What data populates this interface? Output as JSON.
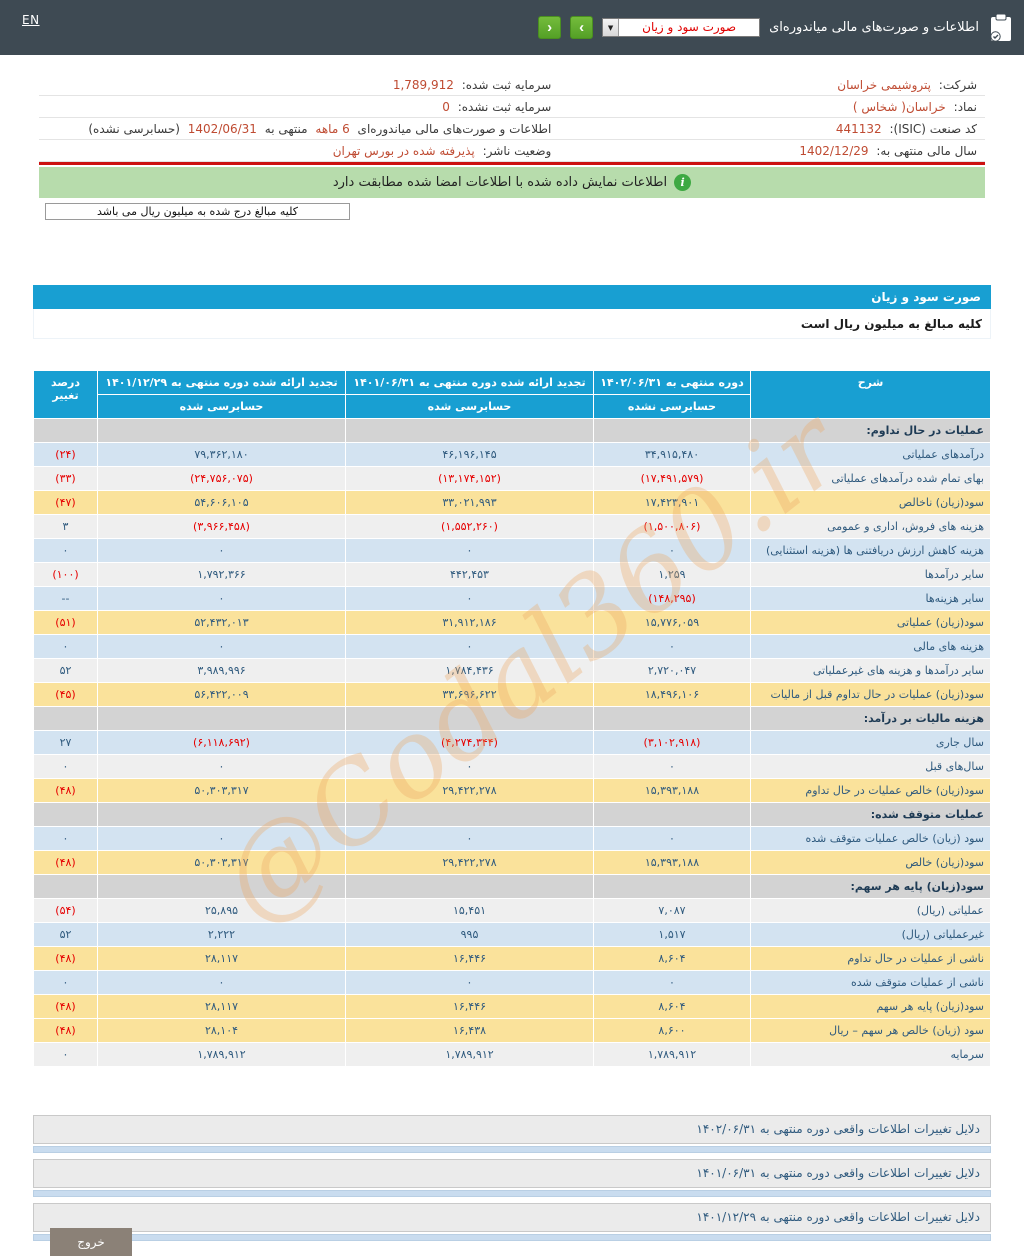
{
  "topbar": {
    "lang_toggle": "EN",
    "title": "اطلاعات و صورت‌های مالی میاندوره‌ای",
    "report_select_value": "صورت سود و زیان",
    "select_arrow_glyph": "▼",
    "next_glyph": "›",
    "prev_glyph": "‹"
  },
  "company": {
    "right_rows": [
      {
        "label": "شرکت:",
        "value": "پتروشیمی خراسان"
      },
      {
        "label": "نماد:",
        "value": "خراسان( شخاس )"
      },
      {
        "label": "کد صنعت (ISIC):",
        "value": "441132"
      },
      {
        "label": "سال مالی منتهی به:",
        "value": "1402/12/29"
      }
    ],
    "left_rows": [
      {
        "label": "سرمایه ثبت شده:",
        "value": "1,789,912"
      },
      {
        "label": "سرمایه ثبت نشده:",
        "value": "0"
      },
      {
        "label": "اطلاعات و صورت‌های مالی میاندوره‌ای",
        "duration": "6 ماهه",
        "middle": "منتهی به",
        "date": "1402/06/31",
        "note": "(حسابرسی نشده)"
      },
      {
        "label": "وضعیت ناشر:",
        "value": "پذیرفته شده در بورس تهران"
      }
    ]
  },
  "notice": {
    "icon_glyph": "i",
    "text": "اطلاعات نمایش داده شده با اطلاعات امضا شده مطابقت دارد"
  },
  "amounts_note": "کلیه مبالغ درج شده به میلیون ریال می باشد",
  "statement": {
    "title": "صورت سود و زیان",
    "subtitle": "کلیه مبالغ به میلیون ریال است"
  },
  "table": {
    "col_headers": {
      "sharh": "شرح",
      "p1_title": "دوره منتهی به ۱۴۰۲/۰۶/۳۱",
      "p1_sub": "حسابرسی نشده",
      "p2_title": "تجدید ارائه شده دوره منتهی به ۱۴۰۱/۰۶/۳۱",
      "p2_sub": "حسابرسی شده",
      "p3_title": "تجدید ارائه شده دوره منتهی به ۱۴۰۱/۱۲/۲۹",
      "p3_sub": "حسابرسی شده",
      "pct": "درصد تغییر"
    },
    "rows": [
      {
        "type": "section",
        "label": "عملیات در حال تداوم:"
      },
      {
        "type": "data",
        "bg": "blue",
        "label": "درآمدهای عملیاتی",
        "v1": "۳۴,۹۱۵,۴۸۰",
        "v2": "۴۶,۱۹۶,۱۴۵",
        "v3": "۷۹,۳۶۲,۱۸۰",
        "pct": "(۲۴)"
      },
      {
        "type": "data",
        "bg": "gray",
        "label": "بهای تمام شده درآمدهای عملیاتی",
        "v1": "(۱۷,۴۹۱,۵۷۹)",
        "v2": "(۱۳,۱۷۴,۱۵۲)",
        "v3": "(۲۴,۷۵۶,۰۷۵)",
        "pct": "(۳۳)"
      },
      {
        "type": "data",
        "bg": "yellow",
        "label": "سود(زیان) ناخالص",
        "v1": "۱۷,۴۲۳,۹۰۱",
        "v2": "۳۳,۰۲۱,۹۹۳",
        "v3": "۵۴,۶۰۶,۱۰۵",
        "pct": "(۴۷)"
      },
      {
        "type": "data",
        "bg": "gray",
        "label": "هزینه های فروش، اداری و عمومی",
        "v1": "(۱,۵۰۰,۸۰۶)",
        "v2": "(۱,۵۵۲,۲۶۰)",
        "v3": "(۳,۹۶۶,۴۵۸)",
        "pct": "۳"
      },
      {
        "type": "data",
        "bg": "blue",
        "label": "هزینه کاهش ارزش دریافتنی ها (هزینه استثنایی)",
        "v1": "۰",
        "v2": "۰",
        "v3": "۰",
        "pct": "۰"
      },
      {
        "type": "data",
        "bg": "gray",
        "label": "سایر درآمدها",
        "v1": "۱,۲۵۹",
        "v2": "۴۴۲,۴۵۳",
        "v3": "۱,۷۹۲,۳۶۶",
        "pct": "(۱۰۰)"
      },
      {
        "type": "data",
        "bg": "blue",
        "label": "سایر هزینه‌ها",
        "v1": "(۱۴۸,۲۹۵)",
        "v2": "۰",
        "v3": "۰",
        "pct": "--"
      },
      {
        "type": "data",
        "bg": "yellow",
        "label": "سود(زیان) عملیاتی",
        "v1": "۱۵,۷۷۶,۰۵۹",
        "v2": "۳۱,۹۱۲,۱۸۶",
        "v3": "۵۲,۴۳۲,۰۱۳",
        "pct": "(۵۱)"
      },
      {
        "type": "data",
        "bg": "blue",
        "label": "هزینه های مالی",
        "v1": "۰",
        "v2": "۰",
        "v3": "۰",
        "pct": "۰"
      },
      {
        "type": "data",
        "bg": "gray",
        "label": "سایر درآمدها و هزینه های غیرعملیاتی",
        "v1": "۲,۷۲۰,۰۴۷",
        "v2": "۱,۷۸۴,۴۳۶",
        "v3": "۳,۹۸۹,۹۹۶",
        "pct": "۵۲"
      },
      {
        "type": "data",
        "bg": "yellow",
        "label": "سود(زیان) عملیات در حال تداوم قبل از مالیات",
        "v1": "۱۸,۴۹۶,۱۰۶",
        "v2": "۳۳,۶۹۶,۶۲۲",
        "v3": "۵۶,۴۲۲,۰۰۹",
        "pct": "(۴۵)"
      },
      {
        "type": "section",
        "label": "هزینه مالیات بر درآمد:"
      },
      {
        "type": "data",
        "bg": "blue",
        "label": "سال جاری",
        "v1": "(۳,۱۰۲,۹۱۸)",
        "v2": "(۴,۲۷۴,۳۴۴)",
        "v3": "(۶,۱۱۸,۶۹۲)",
        "pct": "۲۷"
      },
      {
        "type": "data",
        "bg": "gray",
        "label": "سال‌های قبل",
        "v1": "۰",
        "v2": "۰",
        "v3": "۰",
        "pct": "۰"
      },
      {
        "type": "data",
        "bg": "yellow",
        "label": "سود(زیان) خالص عملیات در حال تداوم",
        "v1": "۱۵,۳۹۳,۱۸۸",
        "v2": "۲۹,۴۲۲,۲۷۸",
        "v3": "۵۰,۳۰۳,۳۱۷",
        "pct": "(۴۸)"
      },
      {
        "type": "section",
        "label": "عملیات متوقف شده:"
      },
      {
        "type": "data",
        "bg": "blue",
        "label": "سود (زیان) خالص عملیات متوقف شده",
        "v1": "۰",
        "v2": "۰",
        "v3": "۰",
        "pct": "۰"
      },
      {
        "type": "data",
        "bg": "yellow",
        "label": "سود(زیان) خالص",
        "v1": "۱۵,۳۹۳,۱۸۸",
        "v2": "۲۹,۴۲۲,۲۷۸",
        "v3": "۵۰,۳۰۳,۳۱۷",
        "pct": "(۴۸)"
      },
      {
        "type": "section",
        "label": "سود(زیان) پایه هر سهم:"
      },
      {
        "type": "data",
        "bg": "gray",
        "label": "عملیاتی (ریال)",
        "v1": "۷,۰۸۷",
        "v2": "۱۵,۴۵۱",
        "v3": "۲۵,۸۹۵",
        "pct": "(۵۴)"
      },
      {
        "type": "data",
        "bg": "blue",
        "label": "غیرعملیاتی (ریال)",
        "v1": "۱,۵۱۷",
        "v2": "۹۹۵",
        "v3": "۲,۲۲۲",
        "pct": "۵۲"
      },
      {
        "type": "data",
        "bg": "yellow",
        "label": "ناشی از عملیات در حال تداوم",
        "v1": "۸,۶۰۴",
        "v2": "۱۶,۴۴۶",
        "v3": "۲۸,۱۱۷",
        "pct": "(۴۸)"
      },
      {
        "type": "data",
        "bg": "blue",
        "label": "ناشی از عملیات متوقف شده",
        "v1": "۰",
        "v2": "۰",
        "v3": "۰",
        "pct": "۰"
      },
      {
        "type": "data",
        "bg": "yellow",
        "label": "سود(زیان) پایه هر سهم",
        "v1": "۸,۶۰۴",
        "v2": "۱۶,۴۴۶",
        "v3": "۲۸,۱۱۷",
        "pct": "(۴۸)"
      },
      {
        "type": "data",
        "bg": "yellow",
        "label": "سود (زیان) خالص هر سهم – ریال",
        "v1": "۸,۶۰۰",
        "v2": "۱۶,۴۳۸",
        "v3": "۲۸,۱۰۴",
        "pct": "(۴۸)"
      },
      {
        "type": "data",
        "bg": "gray",
        "label": "سرمایه",
        "v1": "۱,۷۸۹,۹۱۲",
        "v2": "۱,۷۸۹,۹۱۲",
        "v3": "۱,۷۸۹,۹۱۲",
        "pct": "۰"
      }
    ]
  },
  "watermark": "@Codal360.ir",
  "footer_links": [
    "دلایل تغییرات اطلاعات واقعی دوره منتهی به ۱۴۰۲/۰۶/۳۱",
    "دلایل تغییرات اطلاعات واقعی دوره منتهی به ۱۴۰۱/۰۶/۳۱",
    "دلایل تغییرات اطلاعات واقعی دوره منتهی به ۱۴۰۱/۱۲/۲۹"
  ],
  "exit_button": "خروج",
  "colors": {
    "topbar": "#3e4a53",
    "accent_cyan": "#189fd2",
    "row_yellow": "#fae29b",
    "row_blue": "#d3e3f1",
    "row_gray": "#efefef",
    "section_gray": "#d3d3d3",
    "notice_green": "#b7dcac",
    "value_orange": "#bf4b32",
    "negative_red": "#e60000",
    "text_navy": "#2f5a7e",
    "button_green": "#5ba72f",
    "red_rule": "#cc1111",
    "exit_gray": "#8b8177"
  }
}
